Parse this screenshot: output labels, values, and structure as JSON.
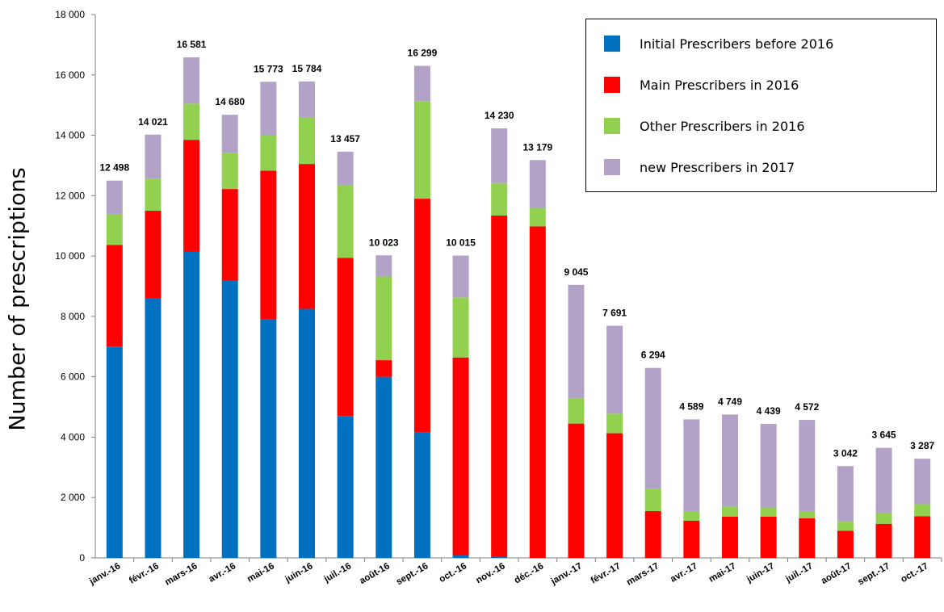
{
  "chart_data": {
    "type": "bar",
    "stacked": true,
    "ylabel": "Number of prescriptions",
    "ylim": [
      0,
      18000
    ],
    "yticks": [
      0,
      2000,
      4000,
      6000,
      8000,
      10000,
      12000,
      14000,
      16000,
      18000
    ],
    "ytick_labels": [
      "0",
      "2 000",
      "4 000",
      "6 000",
      "8 000",
      "10 000",
      "12 000",
      "14 000",
      "16 000",
      "18 000"
    ],
    "categories": [
      "janv.-16",
      "févr.-16",
      "mars-16",
      "avr.-16",
      "mai-16",
      "juin-16",
      "juil.-16",
      "août-16",
      "sept.-16",
      "oct.-16",
      "nov.-16",
      "déc.-16",
      "janv.-17",
      "févr.-17",
      "mars-17",
      "avr.-17",
      "mai-17",
      "juin-17",
      "juil.-17",
      "août-17",
      "sept.-17",
      "oct.-17"
    ],
    "total_labels": [
      "12 498",
      "14 021",
      "16 581",
      "14 680",
      "15 773",
      "15 784",
      "13 457",
      "10 023",
      "16 299",
      "10 015",
      "14 230",
      "13 179",
      "9 045",
      "7 691",
      "6 294",
      "4 589",
      "4 749",
      "4 439",
      "4 572",
      "3 042",
      "3 645",
      "3 287"
    ],
    "series": [
      {
        "name": "Initial Prescribers before 2016",
        "color": "#0070C0",
        "values": [
          7000,
          8600,
          10150,
          9200,
          7900,
          8250,
          4700,
          6000,
          4150,
          80,
          40,
          0,
          0,
          0,
          0,
          0,
          0,
          0,
          0,
          0,
          0,
          0
        ]
      },
      {
        "name": "Main Prescribers in 2016",
        "color": "#FF0000",
        "values": [
          3370,
          2900,
          3700,
          3020,
          4930,
          4800,
          5240,
          550,
          7750,
          6560,
          11300,
          10980,
          4450,
          4130,
          1550,
          1230,
          1370,
          1370,
          1310,
          900,
          1130,
          1380
        ]
      },
      {
        "name": "Other Prescribers in 2016",
        "color": "#92D050",
        "values": [
          1000,
          1050,
          1200,
          1200,
          1170,
          1550,
          2420,
          2770,
          3230,
          1990,
          1080,
          600,
          850,
          650,
          730,
          320,
          320,
          300,
          230,
          300,
          370,
          400
        ]
      },
      {
        "name": "new Prescribers in 2017",
        "color": "#B3A2C7",
        "values": [
          1128,
          1471,
          1531,
          1260,
          1773,
          1184,
          1097,
          703,
          1169,
          1385,
          1810,
          1599,
          3745,
          2911,
          4014,
          3039,
          3059,
          2769,
          3032,
          1842,
          2145,
          1507
        ]
      }
    ],
    "legend_position": "top-right",
    "grid": false
  }
}
